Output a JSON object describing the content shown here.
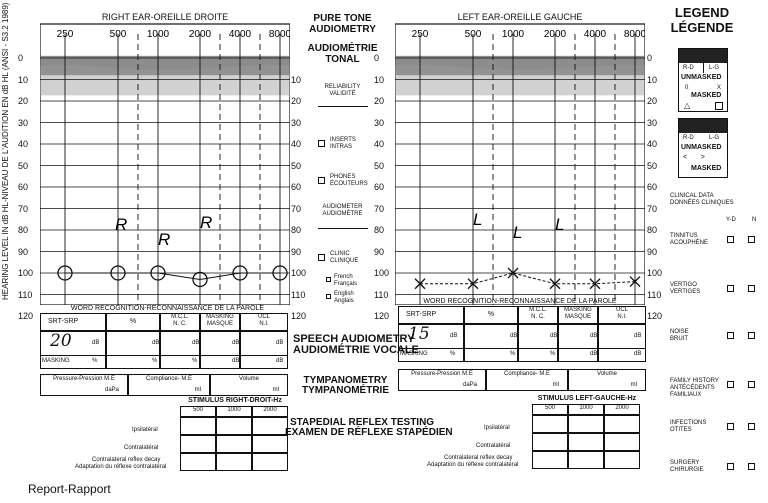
{
  "side_label": "HEARING LEVEL IN dB HL-NIVEAU DE L'AUDITION EN dB HL (ANSI - S3.2 1989)",
  "right": {
    "title": "RIGHT EAR-OREILLE DROITE",
    "freq_labels": [
      "250",
      "500",
      "1000",
      "2000",
      "4000",
      "8000"
    ],
    "hand_letters": [
      "R",
      "R",
      "R"
    ],
    "points": [
      {
        "f": "250",
        "db": 100
      },
      {
        "f": "500",
        "db": 100
      },
      {
        "f": "1000",
        "db": 100
      },
      {
        "f": "2000",
        "db": 103
      },
      {
        "f": "4000",
        "db": 100
      },
      {
        "f": "8000",
        "db": 100
      }
    ]
  },
  "left": {
    "title": "LEFT EAR-OREILLE GAUCHE",
    "freq_labels": [
      "250",
      "500",
      "1000",
      "2000",
      "4000",
      "8000"
    ],
    "hand_letters": [
      "L",
      "L",
      "L"
    ],
    "points": [
      {
        "f": "250",
        "db": 105
      },
      {
        "f": "500",
        "db": 105
      },
      {
        "f": "1000",
        "db": 100
      },
      {
        "f": "2000",
        "db": 105
      },
      {
        "f": "4000",
        "db": 105
      },
      {
        "f": "8000",
        "db": 104
      }
    ]
  },
  "db_labels": [
    "0",
    "10",
    "20",
    "30",
    "40",
    "50",
    "60",
    "70",
    "80",
    "90",
    "100",
    "110",
    "120"
  ],
  "center_db_labels": [
    "10",
    "20",
    "30",
    "40",
    "50",
    "60",
    "70",
    "80",
    "90",
    "100",
    "110",
    "120"
  ],
  "center": {
    "title1": "PURE TONE",
    "title2": "AUDIOMETRY",
    "title3": "AUDIOMÉTRIE",
    "title4": "TONAL",
    "reliability1": "RELIABILITY",
    "reliability2": "VALIDITÉ",
    "inserts1": "INSERTS",
    "inserts2": "INTRAS",
    "phones1": "PHONES",
    "phones2": "ÉCOUTEURS",
    "audiometer1": "AUDIOMETER",
    "audiometer2": "AUDIOMÈTRE",
    "clinic1": "CLINIC",
    "clinic2": "CLINIQUE",
    "french1": "French",
    "french2": "Français",
    "english1": "English",
    "english2": "Anglais"
  },
  "speech": {
    "word_title": "WORD RECOGNITION-RECONNAISSANCE DE LA PAROLE",
    "srt": "SRT-SRP",
    "pct": "%",
    "mcl1": "M.C.L.",
    "mcl2": "N. C.",
    "masking1": "MASKING",
    "masking2": "MASQUE",
    "ucl1": "UCL",
    "ucl2": "N.I.",
    "db": "dB",
    "masking_row": "MASKING",
    "right_srt_value": "20",
    "left_srt_value": "15",
    "title1": "SPEECH AUDIOMETRY",
    "title2": "AUDIOMÉTRIE VOCALE"
  },
  "tymp": {
    "pressure": "Pressure-Pression M.E",
    "dapa": "daPa",
    "compliance": "Compliance- M.E",
    "ml": "ml",
    "volume": "Volume",
    "title1": "TYMPANOMETRY",
    "title2": "TYMPANOMÉTRIE"
  },
  "reflex": {
    "right_stim": "STIMULUS RIGHT-DROIT-Hz",
    "left_stim": "STIMULUS LEFT-GAUCHE-Hz",
    "freqs": [
      "500",
      "1000",
      "2000"
    ],
    "ipsi": "Ipsilatéral",
    "contra": "Contralatéral",
    "decay1": "Contralateral reflex decay",
    "decay2": "Adaptation du réflexe contralatéral",
    "title1": "STAPEDIAL REFLEX TESTING",
    "title2": "EXAMEN DE RÉFLEXE STAPÉDIEN"
  },
  "legend": {
    "title1": "LEGEND",
    "title2": "LÉGENDE",
    "rd": "R-D",
    "lg": "L-G",
    "unmasked": "UNMASKED",
    "masked": "MASKED",
    "zero": "0",
    "x": "X",
    "unmasked2": "UNMASKED",
    "masked2": "MASKED",
    "clinical1": "CLINICAL DATA",
    "clinical2": "DONNÉES CLINIQUES",
    "yd": "Y-D",
    "n": "N",
    "items": [
      {
        "l1": "TINNITUS",
        "l2": "ACOUPHÈNE"
      },
      {
        "l1": "VERTIGO",
        "l2": "VERTIGES"
      },
      {
        "l1": "NOISE",
        "l2": "BRUIT"
      },
      {
        "l1": "FAMILY HISTORY",
        "l2": "ANTÉCÉDENTS",
        "l3": "FAMILIAUX"
      },
      {
        "l1": "INFECTIONS",
        "l2": "OTITES"
      },
      {
        "l1": "SURGERY",
        "l2": "CHIRURGIE"
      }
    ]
  },
  "report": "Report-Rapport"
}
